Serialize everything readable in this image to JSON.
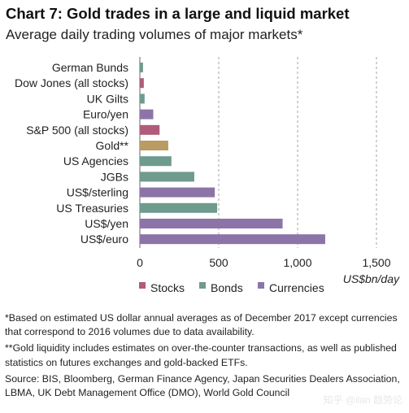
{
  "header": {
    "title": "Chart 7: Gold trades in a large and liquid market",
    "subtitle": "Average daily trading volumes of major markets*"
  },
  "colors": {
    "Stocks": "#b05b79",
    "Bonds": "#6e9b8d",
    "Currencies": "#8d74a8",
    "Gold": "#b99b63"
  },
  "chart_data": {
    "type": "bar",
    "orientation": "horizontal",
    "categories": [
      "German Bunds",
      "Dow Jones (all stocks)",
      "UK Gilts",
      "Euro/yen",
      "S&P 500 (all stocks)",
      "Gold**",
      "US Agencies",
      "JGBs",
      "US$/sterling",
      "US Treasuries",
      "US$/yen",
      "US$/euro"
    ],
    "values": [
      20,
      25,
      30,
      85,
      125,
      180,
      200,
      345,
      475,
      490,
      905,
      1175
    ],
    "groups": [
      "Bonds",
      "Stocks",
      "Bonds",
      "Currencies",
      "Stocks",
      "Gold",
      "Bonds",
      "Bonds",
      "Currencies",
      "Bonds",
      "Currencies",
      "Currencies"
    ],
    "xlim": [
      0,
      1500
    ],
    "xticks": [
      0,
      500,
      1000,
      1500
    ],
    "xtick_labels": [
      "0",
      "500",
      "1,000",
      "1,500"
    ],
    "xlabel": "US$bn/day",
    "grid": "vertical dashed",
    "legend": {
      "position": "bottom",
      "entries": [
        {
          "name": "Stocks",
          "color": "#b05b79"
        },
        {
          "name": "Bonds",
          "color": "#6e9b8d"
        },
        {
          "name": "Currencies",
          "color": "#8d74a8"
        }
      ]
    }
  },
  "footnotes": {
    "note1": "*Based on estimated US dollar annual averages as of December 2017 except currencies that correspond to 2016 volumes due to data availability.",
    "note2": "**Gold liquidity includes estimates on over-the-counter transactions, as well as published statistics on futures exchanges and gold-backed ETFs.",
    "source": "Source: BIS, Bloomberg, German Finance Agency, Japan Securities Dealers Association, LBMA, UK Debt Management Office (DMO), World Gold Council"
  },
  "watermark": "知乎 @ilan 趋势论"
}
